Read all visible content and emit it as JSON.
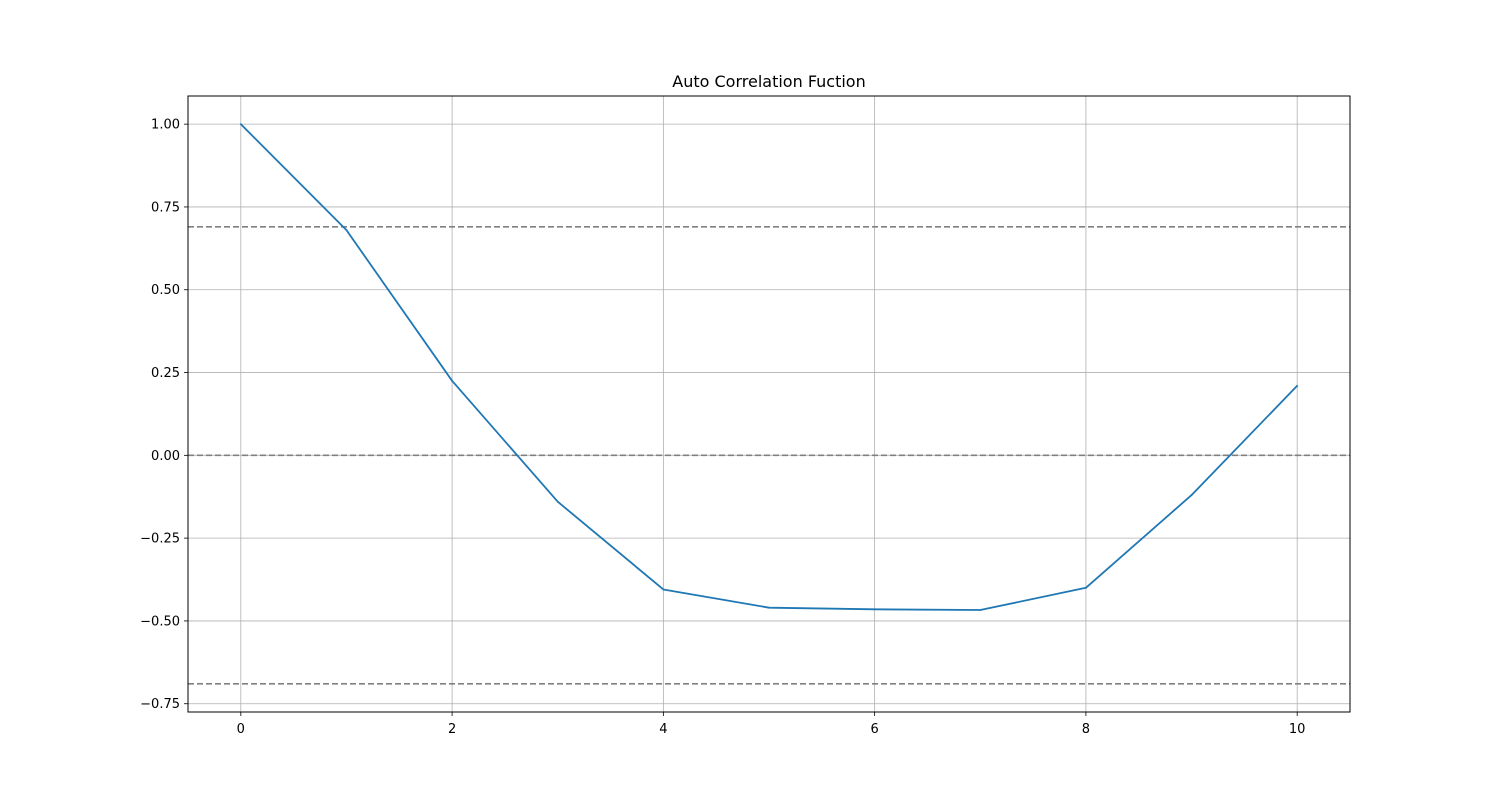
{
  "chart_data": {
    "type": "line",
    "title": "Auto Correlation Fuction",
    "xlabel": "",
    "ylabel": "",
    "xlim": [
      -0.5,
      10.5
    ],
    "ylim": [
      -0.775,
      1.085
    ],
    "grid": true,
    "x_ticks": [
      0,
      2,
      4,
      6,
      8,
      10
    ],
    "x_tick_labels": [
      "0",
      "2",
      "4",
      "6",
      "8",
      "10"
    ],
    "y_ticks": [
      1.0,
      0.75,
      0.5,
      0.25,
      0.0,
      -0.25,
      -0.5,
      -0.75
    ],
    "y_tick_labels": [
      "1.00",
      "0.75",
      "0.50",
      "0.25",
      "0.00",
      "−0.25",
      "−0.50",
      "−0.75"
    ],
    "series": [
      {
        "x": [
          0,
          1,
          2,
          3,
          4,
          5,
          6,
          7,
          8,
          9,
          10
        ],
        "values": [
          1.0,
          0.68,
          0.225,
          -0.14,
          -0.405,
          -0.46,
          -0.465,
          -0.467,
          -0.4,
          -0.12,
          0.21
        ],
        "color": "#1f77b4"
      }
    ],
    "reference_lines": [
      {
        "y": 0.69,
        "style": "dashed",
        "color": "#808080"
      },
      {
        "y": 0.0,
        "style": "dashed",
        "color": "#808080"
      },
      {
        "y": -0.69,
        "style": "dashed",
        "color": "#808080"
      }
    ]
  }
}
